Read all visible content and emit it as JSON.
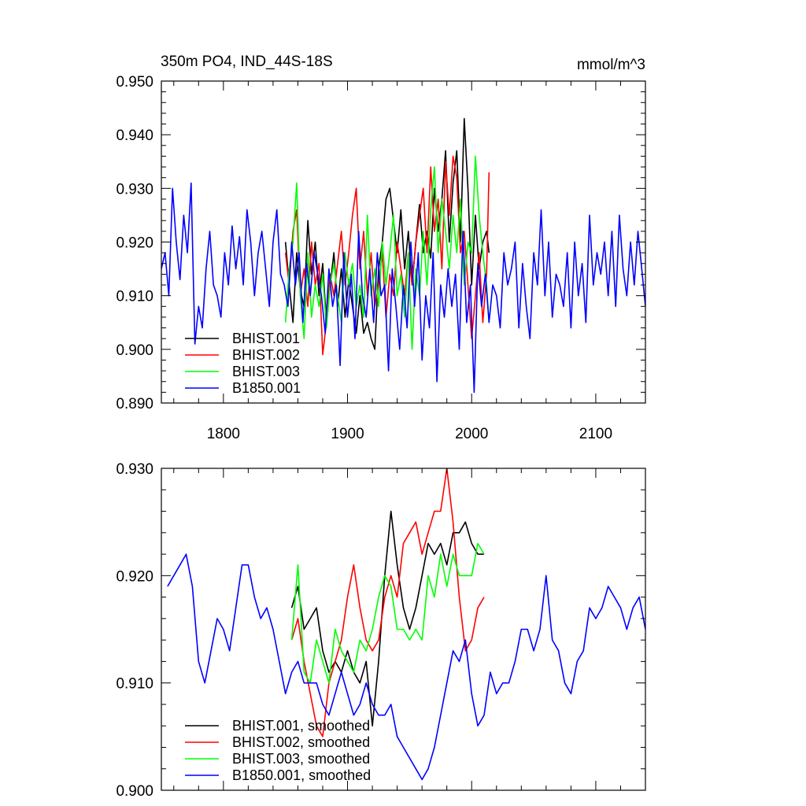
{
  "chart_data": [
    {
      "type": "line",
      "title": "350m PO4, IND_44S-18S",
      "units": "mmol/m^3",
      "xlim": [
        1750,
        2140
      ],
      "ylim": [
        0.89,
        0.95
      ],
      "xticks": [
        1800,
        1900,
        2000,
        2100
      ],
      "xtick_labels": [
        "1800",
        "1900",
        "2000",
        "2100"
      ],
      "yticks": [
        0.89,
        0.9,
        0.91,
        0.92,
        0.93,
        0.94,
        0.95
      ],
      "ytick_labels": [
        "0.890",
        "0.900",
        "0.910",
        "0.920",
        "0.930",
        "0.940",
        "0.950"
      ],
      "legend_position": "bottom-left",
      "grid": false,
      "series": [
        {
          "name": "BHIST.001",
          "color": "#000000",
          "x": [
            1850,
            1853,
            1856,
            1859,
            1862,
            1865,
            1868,
            1871,
            1874,
            1877,
            1880,
            1883,
            1886,
            1889,
            1892,
            1895,
            1898,
            1901,
            1904,
            1907,
            1910,
            1913,
            1916,
            1919,
            1922,
            1925,
            1928,
            1931,
            1934,
            1937,
            1940,
            1943,
            1946,
            1949,
            1952,
            1955,
            1958,
            1961,
            1964,
            1967,
            1970,
            1973,
            1976,
            1979,
            1982,
            1985,
            1988,
            1991,
            1994,
            1997,
            2000,
            2003,
            2006,
            2009,
            2012,
            2014
          ],
          "values": [
            0.92,
            0.912,
            0.905,
            0.918,
            0.911,
            0.908,
            0.924,
            0.914,
            0.92,
            0.91,
            0.916,
            0.905,
            0.912,
            0.918,
            0.908,
            0.915,
            0.906,
            0.913,
            0.908,
            0.903,
            0.91,
            0.903,
            0.905,
            0.902,
            0.9,
            0.915,
            0.92,
            0.928,
            0.93,
            0.924,
            0.918,
            0.926,
            0.915,
            0.922,
            0.912,
            0.92,
            0.927,
            0.918,
            0.922,
            0.917,
            0.93,
            0.922,
            0.928,
            0.937,
            0.92,
            0.931,
            0.937,
            0.92,
            0.943,
            0.93,
            0.912,
            0.925,
            0.915,
            0.92,
            0.922,
            0.918
          ]
        },
        {
          "name": "BHIST.002",
          "color": "#ff0000",
          "x": [
            1850,
            1853,
            1856,
            1859,
            1862,
            1865,
            1868,
            1871,
            1874,
            1877,
            1880,
            1883,
            1886,
            1889,
            1892,
            1895,
            1898,
            1901,
            1904,
            1907,
            1910,
            1913,
            1916,
            1919,
            1922,
            1925,
            1928,
            1931,
            1934,
            1937,
            1940,
            1943,
            1946,
            1949,
            1952,
            1955,
            1958,
            1961,
            1964,
            1967,
            1970,
            1973,
            1976,
            1979,
            1982,
            1985,
            1988,
            1991,
            1994,
            1997,
            2000,
            2003,
            2006,
            2009,
            2012,
            2014
          ],
          "values": [
            0.918,
            0.912,
            0.922,
            0.926,
            0.91,
            0.915,
            0.908,
            0.92,
            0.912,
            0.916,
            0.899,
            0.905,
            0.914,
            0.91,
            0.916,
            0.922,
            0.912,
            0.918,
            0.925,
            0.93,
            0.915,
            0.922,
            0.91,
            0.918,
            0.908,
            0.912,
            0.918,
            0.906,
            0.914,
            0.91,
            0.92,
            0.915,
            0.91,
            0.918,
            0.912,
            0.92,
            0.925,
            0.93,
            0.918,
            0.934,
            0.922,
            0.928,
            0.915,
            0.935,
            0.925,
            0.936,
            0.932,
            0.918,
            0.922,
            0.912,
            0.902,
            0.91,
            0.918,
            0.905,
            0.914,
            0.933
          ]
        },
        {
          "name": "BHIST.003",
          "color": "#00ff00",
          "x": [
            1850,
            1853,
            1856,
            1859,
            1862,
            1865,
            1868,
            1871,
            1874,
            1877,
            1880,
            1883,
            1886,
            1889,
            1892,
            1895,
            1898,
            1901,
            1904,
            1907,
            1910,
            1913,
            1916,
            1919,
            1922,
            1925,
            1928,
            1931,
            1934,
            1937,
            1940,
            1943,
            1946,
            1949,
            1952,
            1955,
            1958,
            1961,
            1964,
            1967,
            1970,
            1973,
            1976,
            1979,
            1982,
            1985,
            1988,
            1991,
            1994,
            1997,
            2000,
            2003,
            2006,
            2009,
            2012,
            2014
          ],
          "values": [
            0.905,
            0.915,
            0.92,
            0.931,
            0.91,
            0.902,
            0.918,
            0.906,
            0.912,
            0.908,
            0.914,
            0.904,
            0.912,
            0.916,
            0.91,
            0.905,
            0.918,
            0.912,
            0.916,
            0.908,
            0.912,
            0.906,
            0.925,
            0.91,
            0.915,
            0.908,
            0.92,
            0.912,
            0.918,
            0.925,
            0.91,
            0.914,
            0.906,
            0.918,
            0.9,
            0.915,
            0.91,
            0.922,
            0.912,
            0.926,
            0.934,
            0.918,
            0.928,
            0.922,
            0.915,
            0.925,
            0.918,
            0.928,
            0.912,
            0.92,
            0.918,
            0.936,
            0.925,
            0.918,
            0.912,
            0.905
          ]
        },
        {
          "name": "B1850.001",
          "color": "#0000ff",
          "x": [
            1750,
            1753,
            1756,
            1759,
            1762,
            1765,
            1768,
            1771,
            1774,
            1777,
            1780,
            1783,
            1786,
            1789,
            1792,
            1795,
            1798,
            1801,
            1804,
            1807,
            1810,
            1813,
            1816,
            1819,
            1822,
            1825,
            1828,
            1831,
            1834,
            1837,
            1840,
            1843,
            1846,
            1849,
            1852,
            1855,
            1858,
            1861,
            1864,
            1867,
            1870,
            1873,
            1876,
            1879,
            1882,
            1885,
            1888,
            1891,
            1894,
            1897,
            1900,
            1903,
            1906,
            1909,
            1912,
            1915,
            1918,
            1921,
            1924,
            1927,
            1930,
            1933,
            1936,
            1939,
            1942,
            1945,
            1948,
            1951,
            1954,
            1957,
            1960,
            1963,
            1966,
            1969,
            1972,
            1975,
            1978,
            1981,
            1984,
            1987,
            1990,
            1993,
            1996,
            1999,
            2002,
            2005,
            2008,
            2011,
            2014,
            2017,
            2020,
            2023,
            2026,
            2029,
            2032,
            2035,
            2038,
            2041,
            2044,
            2047,
            2050,
            2053,
            2056,
            2059,
            2062,
            2065,
            2068,
            2071,
            2074,
            2077,
            2080,
            2083,
            2086,
            2089,
            2092,
            2095,
            2098,
            2101,
            2104,
            2107,
            2110,
            2113,
            2116,
            2119,
            2122,
            2125,
            2128,
            2131,
            2134,
            2137,
            2140
          ],
          "values": [
            0.915,
            0.918,
            0.91,
            0.93,
            0.92,
            0.913,
            0.925,
            0.918,
            0.931,
            0.901,
            0.908,
            0.904,
            0.915,
            0.922,
            0.912,
            0.91,
            0.906,
            0.918,
            0.912,
            0.923,
            0.915,
            0.921,
            0.912,
            0.926,
            0.92,
            0.91,
            0.918,
            0.922,
            0.915,
            0.908,
            0.92,
            0.926,
            0.914,
            0.912,
            0.908,
            0.92,
            0.912,
            0.918,
            0.905,
            0.916,
            0.91,
            0.918,
            0.914,
            0.91,
            0.903,
            0.915,
            0.908,
            0.912,
            0.897,
            0.918,
            0.906,
            0.914,
            0.902,
            0.922,
            0.91,
            0.906,
            0.915,
            0.905,
            0.918,
            0.91,
            0.912,
            0.896,
            0.915,
            0.908,
            0.9,
            0.912,
            0.904,
            0.92,
            0.908,
            0.918,
            0.898,
            0.91,
            0.904,
            0.918,
            0.894,
            0.912,
            0.906,
            0.915,
            0.908,
            0.914,
            0.9,
            0.922,
            0.905,
            0.912,
            0.892,
            0.916,
            0.908,
            0.914,
            0.905,
            0.912,
            0.91,
            0.904,
            0.918,
            0.912,
            0.915,
            0.92,
            0.904,
            0.916,
            0.908,
            0.902,
            0.918,
            0.912,
            0.926,
            0.91,
            0.92,
            0.906,
            0.914,
            0.912,
            0.908,
            0.918,
            0.904,
            0.92,
            0.91,
            0.916,
            0.905,
            0.925,
            0.912,
            0.918,
            0.914,
            0.92,
            0.91,
            0.922,
            0.908,
            0.925,
            0.915,
            0.91,
            0.92,
            0.912,
            0.922,
            0.915,
            0.908
          ]
        }
      ]
    },
    {
      "type": "line",
      "xlim": [
        1750,
        2140
      ],
      "ylim": [
        0.9,
        0.93
      ],
      "xticks": [
        1800,
        1900,
        2000,
        2100
      ],
      "yticks": [
        0.9,
        0.91,
        0.92,
        0.93
      ],
      "ytick_labels": [
        "0.900",
        "0.910",
        "0.920",
        "0.930"
      ],
      "legend_position": "bottom-left",
      "grid": false,
      "series": [
        {
          "name": "BHIST.001, smoothed",
          "color": "#000000",
          "x": [
            1855,
            1860,
            1865,
            1870,
            1875,
            1880,
            1885,
            1890,
            1895,
            1900,
            1905,
            1910,
            1915,
            1920,
            1925,
            1930,
            1935,
            1940,
            1945,
            1950,
            1955,
            1960,
            1965,
            1970,
            1975,
            1980,
            1985,
            1990,
            1995,
            2000,
            2005,
            2010
          ],
          "values": [
            0.917,
            0.919,
            0.915,
            0.916,
            0.917,
            0.913,
            0.911,
            0.912,
            0.911,
            0.913,
            0.911,
            0.91,
            0.912,
            0.906,
            0.912,
            0.92,
            0.926,
            0.921,
            0.917,
            0.915,
            0.917,
            0.92,
            0.923,
            0.922,
            0.923,
            0.921,
            0.924,
            0.924,
            0.925,
            0.923,
            0.922,
            0.922
          ]
        },
        {
          "name": "BHIST.002, smoothed",
          "color": "#ff0000",
          "x": [
            1855,
            1860,
            1865,
            1870,
            1875,
            1880,
            1885,
            1890,
            1895,
            1900,
            1905,
            1910,
            1915,
            1920,
            1925,
            1930,
            1935,
            1940,
            1945,
            1950,
            1955,
            1960,
            1965,
            1970,
            1975,
            1980,
            1985,
            1990,
            1995,
            2000,
            2005,
            2010
          ],
          "values": [
            0.914,
            0.916,
            0.912,
            0.909,
            0.906,
            0.905,
            0.91,
            0.912,
            0.914,
            0.918,
            0.921,
            0.917,
            0.914,
            0.913,
            0.914,
            0.918,
            0.92,
            0.918,
            0.923,
            0.924,
            0.925,
            0.922,
            0.924,
            0.926,
            0.926,
            0.93,
            0.925,
            0.918,
            0.913,
            0.914,
            0.917,
            0.918
          ]
        },
        {
          "name": "BHIST.003, smoothed",
          "color": "#00ff00",
          "x": [
            1855,
            1860,
            1865,
            1870,
            1875,
            1880,
            1885,
            1890,
            1895,
            1900,
            1905,
            1910,
            1915,
            1920,
            1925,
            1930,
            1935,
            1940,
            1945,
            1950,
            1955,
            1960,
            1965,
            1970,
            1975,
            1980,
            1985,
            1990,
            1995,
            2000,
            2005,
            2010
          ],
          "values": [
            0.914,
            0.921,
            0.911,
            0.91,
            0.914,
            0.912,
            0.91,
            0.915,
            0.913,
            0.912,
            0.911,
            0.914,
            0.913,
            0.915,
            0.918,
            0.92,
            0.919,
            0.915,
            0.915,
            0.914,
            0.915,
            0.914,
            0.92,
            0.918,
            0.922,
            0.919,
            0.922,
            0.92,
            0.92,
            0.92,
            0.923,
            0.922
          ]
        },
        {
          "name": "B1850.001, smoothed",
          "color": "#0000ff",
          "x": [
            1755,
            1760,
            1765,
            1770,
            1775,
            1780,
            1785,
            1790,
            1795,
            1800,
            1805,
            1810,
            1815,
            1820,
            1825,
            1830,
            1835,
            1840,
            1845,
            1850,
            1855,
            1860,
            1865,
            1870,
            1875,
            1880,
            1885,
            1890,
            1895,
            1900,
            1905,
            1910,
            1915,
            1920,
            1925,
            1930,
            1935,
            1940,
            1945,
            1950,
            1955,
            1960,
            1965,
            1970,
            1975,
            1980,
            1985,
            1990,
            1995,
            2000,
            2005,
            2010,
            2015,
            2020,
            2025,
            2030,
            2035,
            2040,
            2045,
            2050,
            2055,
            2060,
            2065,
            2070,
            2075,
            2080,
            2085,
            2090,
            2095,
            2100,
            2105,
            2110,
            2115,
            2120,
            2125,
            2130,
            2135,
            2140
          ],
          "values": [
            0.919,
            0.92,
            0.921,
            0.922,
            0.919,
            0.912,
            0.91,
            0.913,
            0.916,
            0.915,
            0.913,
            0.917,
            0.921,
            0.921,
            0.918,
            0.916,
            0.917,
            0.915,
            0.912,
            0.909,
            0.911,
            0.912,
            0.91,
            0.91,
            0.91,
            0.908,
            0.907,
            0.909,
            0.911,
            0.909,
            0.907,
            0.908,
            0.91,
            0.908,
            0.907,
            0.907,
            0.908,
            0.905,
            0.904,
            0.903,
            0.902,
            0.901,
            0.902,
            0.904,
            0.907,
            0.91,
            0.913,
            0.912,
            0.914,
            0.909,
            0.906,
            0.907,
            0.911,
            0.909,
            0.91,
            0.91,
            0.912,
            0.915,
            0.915,
            0.913,
            0.915,
            0.92,
            0.914,
            0.913,
            0.91,
            0.909,
            0.912,
            0.913,
            0.917,
            0.916,
            0.917,
            0.919,
            0.918,
            0.917,
            0.915,
            0.917,
            0.918,
            0.915
          ]
        }
      ]
    }
  ]
}
